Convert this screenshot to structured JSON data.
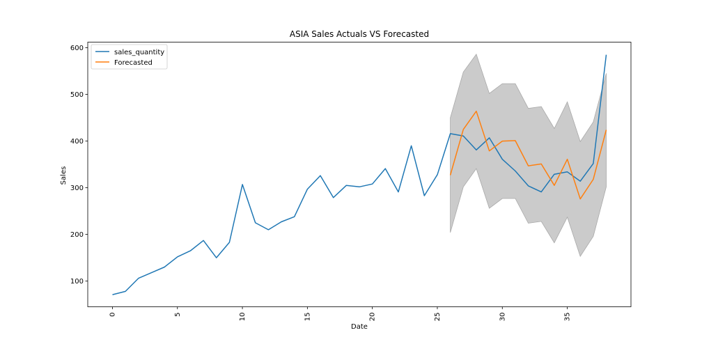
{
  "chart_data": {
    "type": "line",
    "title": "ASIA Sales Actuals VS Forecasted",
    "xlabel": "Date",
    "ylabel": "Sales",
    "xlim": [
      -1.9,
      39.9
    ],
    "ylim": [
      45,
      612
    ],
    "x_ticks": [
      0,
      5,
      10,
      15,
      20,
      25,
      30,
      35
    ],
    "x_tick_labels": [
      "0",
      "5",
      "10",
      "15",
      "20",
      "25",
      "30",
      "35"
    ],
    "y_ticks": [
      100,
      200,
      300,
      400,
      500,
      600
    ],
    "y_tick_labels": [
      "100",
      "200",
      "300",
      "400",
      "500",
      "600"
    ],
    "grid": false,
    "legend_position": "upper-left",
    "series": [
      {
        "name": "sales_quantity",
        "color": "#1f77b4",
        "x": [
          0,
          1,
          2,
          3,
          4,
          5,
          6,
          7,
          8,
          9,
          10,
          11,
          12,
          13,
          14,
          15,
          16,
          17,
          18,
          19,
          20,
          21,
          22,
          23,
          24,
          25,
          26,
          27,
          28,
          29,
          30,
          31,
          32,
          33,
          34,
          35,
          36,
          37,
          38
        ],
        "values": [
          71,
          78,
          106,
          118,
          130,
          152,
          165,
          187,
          150,
          183,
          307,
          225,
          210,
          227,
          238,
          297,
          326,
          279,
          305,
          302,
          308,
          341,
          291,
          390,
          283,
          328,
          416,
          411,
          381,
          407,
          361,
          336,
          304,
          291,
          329,
          334,
          314,
          352,
          585
        ]
      },
      {
        "name": "Forecasted",
        "color": "#ff7f0e",
        "x": [
          26,
          27,
          28,
          29,
          30,
          31,
          32,
          33,
          34,
          35,
          36,
          37,
          38
        ],
        "values": [
          327,
          425,
          464,
          379,
          400,
          401,
          347,
          351,
          305,
          361,
          276,
          318,
          424
        ]
      }
    ],
    "confidence_band": {
      "color": "#bebebe",
      "x": [
        26,
        27,
        28,
        29,
        30,
        31,
        32,
        33,
        34,
        35,
        36,
        37,
        38
      ],
      "upper": [
        450,
        548,
        586,
        502,
        523,
        523,
        470,
        474,
        427,
        484,
        399,
        441,
        545
      ],
      "lower": [
        204,
        302,
        341,
        256,
        277,
        277,
        224,
        228,
        182,
        237,
        153,
        196,
        302
      ]
    }
  }
}
